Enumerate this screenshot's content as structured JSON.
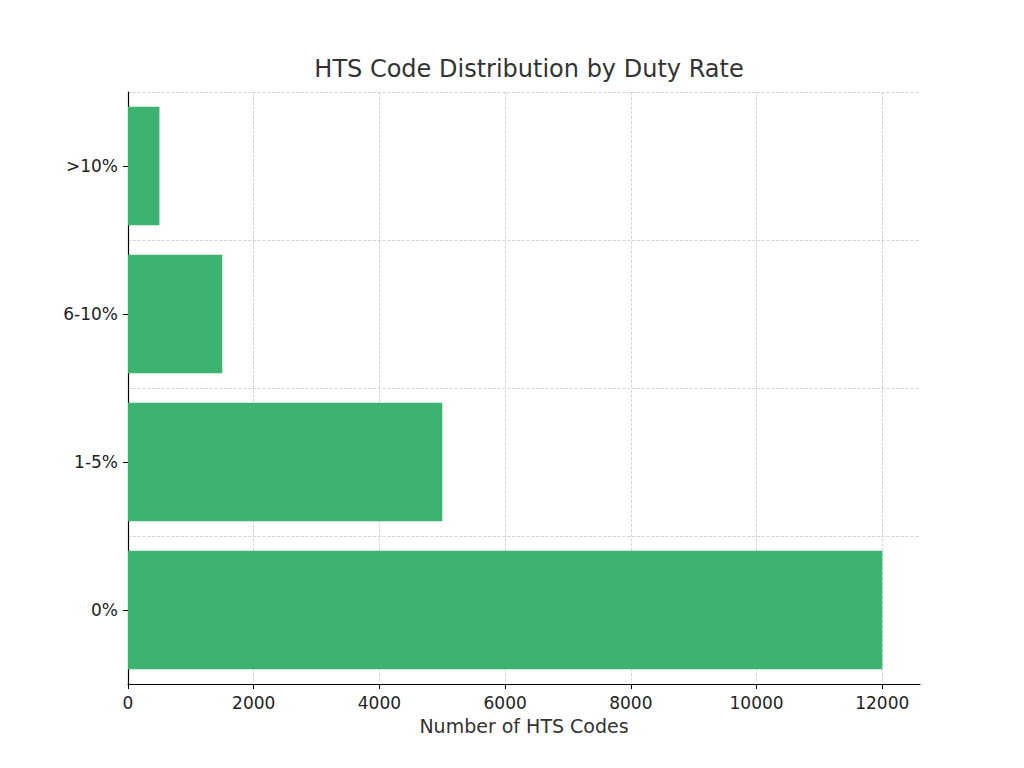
{
  "chart_data": {
    "type": "bar",
    "orientation": "horizontal",
    "title": "HTS Code Distribution by Duty Rate",
    "x_label": "Number of HTS Codes",
    "categories": [
      "0%",
      "1-5%",
      "6-10%",
      ">10%"
    ],
    "values": [
      12000,
      5000,
      1500,
      500
    ],
    "color": "#3cb371",
    "xlim": [
      0,
      12600
    ],
    "xticks": [
      0,
      2000,
      4000,
      6000,
      8000,
      10000,
      12000
    ],
    "grid": true
  }
}
